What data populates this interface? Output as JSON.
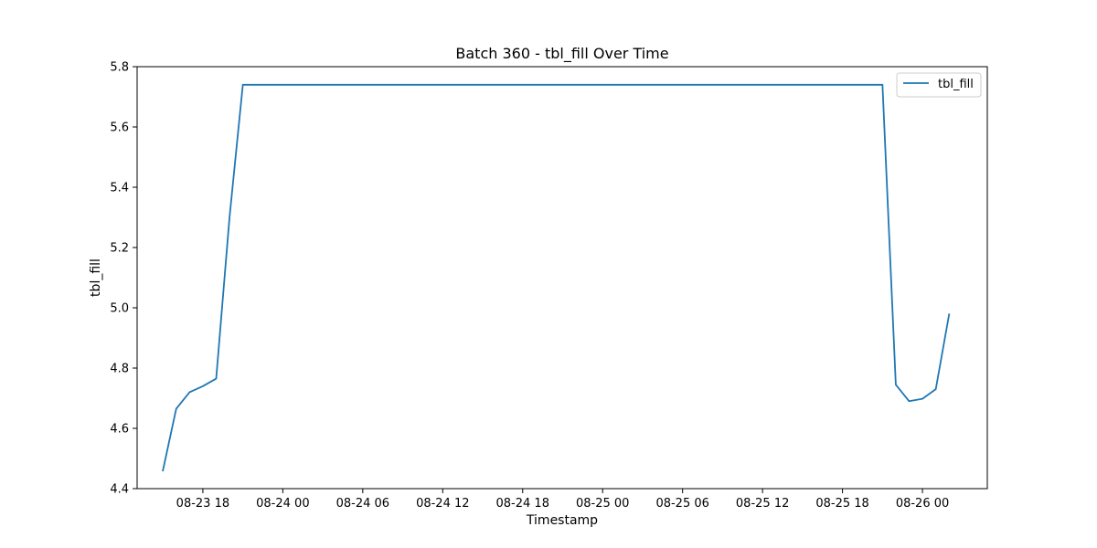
{
  "chart_data": {
    "type": "line",
    "title": "Batch 360 - tbl_fill Over Time",
    "xlabel": "Timestamp",
    "ylabel": "tbl_fill",
    "x_axis": {
      "type": "datetime",
      "range": [
        "2024-08-23 13:04",
        "2024-08-26 04:52"
      ],
      "ticks": [
        {
          "t": "2024-08-23 18:00",
          "label": "08-23 18"
        },
        {
          "t": "2024-08-24 00:00",
          "label": "08-24 00"
        },
        {
          "t": "2024-08-24 06:00",
          "label": "08-24 06"
        },
        {
          "t": "2024-08-24 12:00",
          "label": "08-24 12"
        },
        {
          "t": "2024-08-24 18:00",
          "label": "08-24 18"
        },
        {
          "t": "2024-08-25 00:00",
          "label": "08-25 00"
        },
        {
          "t": "2024-08-25 06:00",
          "label": "08-25 06"
        },
        {
          "t": "2024-08-25 12:00",
          "label": "08-25 12"
        },
        {
          "t": "2024-08-25 18:00",
          "label": "08-25 18"
        },
        {
          "t": "2024-08-26 00:00",
          "label": "08-26 00"
        }
      ]
    },
    "y_axis": {
      "range": [
        4.4,
        5.8
      ],
      "ticks": [
        {
          "v": 4.4,
          "label": "4.4"
        },
        {
          "v": 4.6,
          "label": "4.6"
        },
        {
          "v": 4.8,
          "label": "4.8"
        },
        {
          "v": 5.0,
          "label": "5.0"
        },
        {
          "v": 5.2,
          "label": "5.2"
        },
        {
          "v": 5.4,
          "label": "5.4"
        },
        {
          "v": 5.6,
          "label": "5.6"
        },
        {
          "v": 5.8,
          "label": "5.8"
        }
      ]
    },
    "grid": false,
    "legend": {
      "position": "top-right"
    },
    "series": [
      {
        "name": "tbl_fill",
        "color": "#1f77b4",
        "points": [
          {
            "t": "2024-08-23 15:00",
            "y": 4.46
          },
          {
            "t": "2024-08-23 16:00",
            "y": 4.665
          },
          {
            "t": "2024-08-23 17:00",
            "y": 4.72
          },
          {
            "t": "2024-08-23 18:00",
            "y": 4.74
          },
          {
            "t": "2024-08-23 19:00",
            "y": 4.765
          },
          {
            "t": "2024-08-23 20:00",
            "y": 5.3
          },
          {
            "t": "2024-08-23 21:00",
            "y": 5.74
          },
          {
            "t": "2024-08-25 20:00",
            "y": 5.74
          },
          {
            "t": "2024-08-25 21:00",
            "y": 5.74
          },
          {
            "t": "2024-08-25 22:00",
            "y": 4.745
          },
          {
            "t": "2024-08-25 23:00",
            "y": 4.69
          },
          {
            "t": "2024-08-26 00:00",
            "y": 4.698
          },
          {
            "t": "2024-08-26 01:00",
            "y": 4.73
          },
          {
            "t": "2024-08-26 02:00",
            "y": 4.978
          }
        ]
      }
    ]
  }
}
